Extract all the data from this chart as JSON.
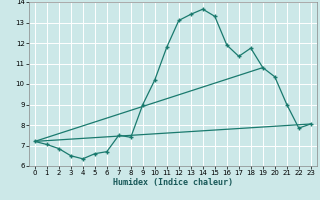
{
  "xlabel": "Humidex (Indice chaleur)",
  "bg_color": "#cce8e8",
  "line_color": "#1a7a6e",
  "grid_color": "#ffffff",
  "xlim": [
    -0.5,
    23.5
  ],
  "ylim": [
    6,
    14
  ],
  "xticks": [
    0,
    1,
    2,
    3,
    4,
    5,
    6,
    7,
    8,
    9,
    10,
    11,
    12,
    13,
    14,
    15,
    16,
    17,
    18,
    19,
    20,
    21,
    22,
    23
  ],
  "yticks": [
    6,
    7,
    8,
    9,
    10,
    11,
    12,
    13,
    14
  ],
  "line1_x": [
    0,
    1,
    2,
    3,
    4,
    5,
    6,
    7,
    8,
    9,
    10,
    11,
    12,
    13,
    14,
    15,
    16,
    17,
    18,
    19,
    20,
    21,
    22,
    23
  ],
  "line1_y": [
    7.2,
    7.05,
    6.85,
    6.5,
    6.35,
    6.6,
    6.7,
    7.5,
    7.4,
    9.0,
    10.2,
    11.8,
    13.1,
    13.4,
    13.65,
    13.3,
    11.9,
    11.35,
    11.75,
    10.8,
    10.35,
    9.0,
    7.85,
    8.05
  ],
  "line2_x": [
    0,
    19
  ],
  "line2_y": [
    7.2,
    10.8
  ],
  "line3_x": [
    0,
    23
  ],
  "line3_y": [
    7.2,
    8.05
  ]
}
